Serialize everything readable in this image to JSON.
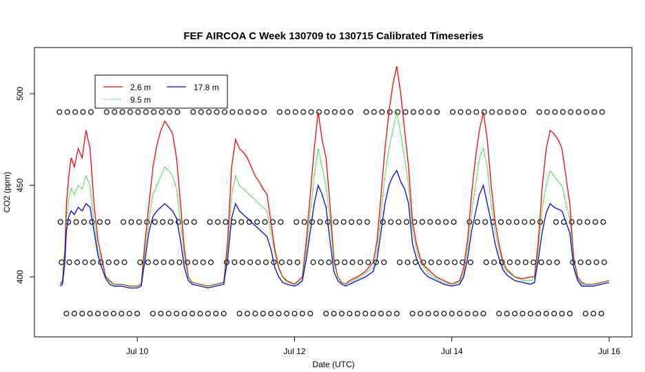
{
  "chart_data": {
    "type": "line",
    "title": "FEF AIRCOA C  Week 130709 to 130715  Calibrated Timeseries",
    "xlabel": "Date (UTC)",
    "ylabel": "CO2 (ppm)",
    "xlim": [
      9.0,
      16.0
    ],
    "ylim": [
      370,
      520
    ],
    "x_ticks": [
      {
        "value": 10,
        "label": "Jul 10"
      },
      {
        "value": 12,
        "label": "Jul 12"
      },
      {
        "value": 14,
        "label": "Jul 14"
      },
      {
        "value": 16,
        "label": "Jul 16"
      }
    ],
    "y_ticks": [
      {
        "value": 400,
        "label": "400"
      },
      {
        "value": 450,
        "label": "450"
      },
      {
        "value": 500,
        "label": "500"
      }
    ],
    "legend": {
      "placement": "top-left",
      "entries": [
        {
          "name": "2.6 m",
          "color": "#ff0000",
          "style": "solid"
        },
        {
          "name": "9.5 m",
          "color": "#00cc00",
          "style": "dotted"
        },
        {
          "name": "17.8 m",
          "color": "#0000ff",
          "style": "solid"
        }
      ]
    },
    "series": [
      {
        "name": "2.6 m",
        "color": "#ff0000",
        "x": [
          9.02,
          9.05,
          9.08,
          9.1,
          9.13,
          9.16,
          9.2,
          9.25,
          9.3,
          9.35,
          9.4,
          9.45,
          9.5,
          9.55,
          9.6,
          9.65,
          9.7,
          9.8,
          9.9,
          10.0,
          10.05,
          10.1,
          10.15,
          10.2,
          10.25,
          10.3,
          10.35,
          10.4,
          10.45,
          10.5,
          10.55,
          10.6,
          10.65,
          10.7,
          10.8,
          10.9,
          11.0,
          11.1,
          11.15,
          11.2,
          11.25,
          11.3,
          11.35,
          11.4,
          11.45,
          11.5,
          11.55,
          11.6,
          11.65,
          11.7,
          11.75,
          11.8,
          11.85,
          11.9,
          12.0,
          12.05,
          12.1,
          12.15,
          12.2,
          12.25,
          12.3,
          12.35,
          12.4,
          12.45,
          12.5,
          12.55,
          12.6,
          12.65,
          12.7,
          12.8,
          12.9,
          13.0,
          13.05,
          13.1,
          13.15,
          13.2,
          13.25,
          13.3,
          13.35,
          13.4,
          13.45,
          13.5,
          13.55,
          13.6,
          13.65,
          13.7,
          13.8,
          13.9,
          14.0,
          14.1,
          14.15,
          14.2,
          14.25,
          14.3,
          14.35,
          14.4,
          14.45,
          14.5,
          14.55,
          14.6,
          14.65,
          14.7,
          14.8,
          14.9,
          15.0,
          15.05,
          15.1,
          15.15,
          15.2,
          15.25,
          15.3,
          15.35,
          15.4,
          15.45,
          15.5,
          15.55,
          15.6,
          15.65,
          15.7,
          15.8,
          15.9,
          16.0
        ],
        "y": [
          396,
          398,
          415,
          440,
          455,
          465,
          460,
          470,
          465,
          480,
          470,
          440,
          420,
          410,
          400,
          398,
          396,
          396,
          395,
          395,
          396,
          420,
          440,
          460,
          472,
          480,
          485,
          482,
          478,
          465,
          440,
          415,
          400,
          397,
          396,
          395,
          396,
          397,
          420,
          460,
          475,
          470,
          468,
          465,
          460,
          455,
          452,
          448,
          445,
          430,
          415,
          405,
          400,
          398,
          396,
          398,
          400,
          420,
          445,
          470,
          490,
          475,
          465,
          440,
          410,
          400,
          397,
          396,
          398,
          400,
          403,
          408,
          420,
          445,
          470,
          490,
          505,
          515,
          500,
          480,
          460,
          430,
          418,
          410,
          406,
          404,
          400,
          398,
          396,
          398,
          405,
          420,
          445,
          465,
          480,
          490,
          475,
          450,
          430,
          418,
          408,
          404,
          400,
          399,
          400,
          400,
          420,
          450,
          470,
          480,
          478,
          475,
          470,
          455,
          440,
          410,
          400,
          397,
          396,
          396,
          397,
          398
        ]
      },
      {
        "name": "9.5 m",
        "color": "#00cc00",
        "x": [
          9.02,
          9.05,
          9.08,
          9.1,
          9.13,
          9.16,
          9.2,
          9.25,
          9.3,
          9.35,
          9.4,
          9.45,
          9.5,
          9.55,
          9.6,
          9.65,
          9.7,
          9.8,
          9.9,
          10.0,
          10.05,
          10.1,
          10.15,
          10.2,
          10.25,
          10.3,
          10.35,
          10.4,
          10.45,
          10.5,
          10.55,
          10.6,
          10.65,
          10.7,
          10.8,
          10.9,
          11.0,
          11.1,
          11.15,
          11.2,
          11.25,
          11.3,
          11.35,
          11.4,
          11.45,
          11.5,
          11.55,
          11.6,
          11.65,
          11.7,
          11.75,
          11.8,
          11.85,
          11.9,
          12.0,
          12.05,
          12.1,
          12.15,
          12.2,
          12.25,
          12.3,
          12.35,
          12.4,
          12.45,
          12.5,
          12.55,
          12.6,
          12.65,
          12.7,
          12.8,
          12.9,
          13.0,
          13.05,
          13.1,
          13.15,
          13.2,
          13.25,
          13.3,
          13.35,
          13.4,
          13.45,
          13.5,
          13.55,
          13.6,
          13.65,
          13.7,
          13.8,
          13.9,
          14.0,
          14.1,
          14.15,
          14.2,
          14.25,
          14.3,
          14.35,
          14.4,
          14.45,
          14.5,
          14.55,
          14.6,
          14.65,
          14.7,
          14.8,
          14.9,
          15.0,
          15.05,
          15.1,
          15.15,
          15.2,
          15.25,
          15.3,
          15.35,
          15.4,
          15.45,
          15.5,
          15.55,
          15.6,
          15.65,
          15.7,
          15.8,
          15.9,
          16.0
        ],
        "y": [
          396,
          397,
          412,
          432,
          443,
          448,
          445,
          450,
          448,
          455,
          450,
          430,
          415,
          408,
          400,
          397,
          396,
          396,
          395,
          395,
          396,
          415,
          432,
          445,
          450,
          455,
          460,
          458,
          455,
          448,
          430,
          410,
          400,
          397,
          396,
          395,
          396,
          397,
          415,
          445,
          455,
          450,
          448,
          446,
          444,
          442,
          440,
          438,
          436,
          425,
          412,
          404,
          400,
          397,
          396,
          397,
          399,
          415,
          435,
          455,
          470,
          460,
          450,
          432,
          408,
          400,
          397,
          396,
          397,
          399,
          402,
          405,
          415,
          435,
          455,
          470,
          480,
          490,
          478,
          465,
          450,
          425,
          415,
          408,
          405,
          402,
          399,
          397,
          396,
          397,
          402,
          415,
          435,
          450,
          465,
          470,
          460,
          440,
          425,
          415,
          406,
          403,
          400,
          398,
          398,
          399,
          415,
          438,
          450,
          458,
          455,
          452,
          450,
          440,
          432,
          408,
          399,
          396,
          396,
          396,
          397,
          398
        ]
      },
      {
        "name": "17.8 m",
        "color": "#0000ff",
        "x": [
          9.02,
          9.05,
          9.08,
          9.1,
          9.13,
          9.16,
          9.2,
          9.25,
          9.3,
          9.35,
          9.4,
          9.45,
          9.5,
          9.55,
          9.6,
          9.65,
          9.7,
          9.8,
          9.9,
          10.0,
          10.05,
          10.1,
          10.15,
          10.2,
          10.25,
          10.3,
          10.35,
          10.4,
          10.45,
          10.5,
          10.55,
          10.6,
          10.65,
          10.7,
          10.8,
          10.9,
          11.0,
          11.1,
          11.15,
          11.2,
          11.25,
          11.3,
          11.35,
          11.4,
          11.45,
          11.5,
          11.55,
          11.6,
          11.65,
          11.7,
          11.75,
          11.8,
          11.85,
          11.9,
          12.0,
          12.05,
          12.1,
          12.15,
          12.2,
          12.25,
          12.3,
          12.35,
          12.4,
          12.45,
          12.5,
          12.55,
          12.6,
          12.65,
          12.7,
          12.8,
          12.9,
          13.0,
          13.05,
          13.1,
          13.15,
          13.2,
          13.25,
          13.3,
          13.35,
          13.4,
          13.45,
          13.5,
          13.55,
          13.6,
          13.65,
          13.7,
          13.8,
          13.9,
          14.0,
          14.1,
          14.15,
          14.2,
          14.25,
          14.3,
          14.35,
          14.4,
          14.45,
          14.5,
          14.55,
          14.6,
          14.65,
          14.7,
          14.8,
          14.9,
          15.0,
          15.05,
          15.1,
          15.15,
          15.2,
          15.25,
          15.3,
          15.35,
          15.4,
          15.45,
          15.5,
          15.55,
          15.6,
          15.65,
          15.7,
          15.8,
          15.9,
          16.0
        ],
        "y": [
          395,
          396,
          408,
          425,
          433,
          436,
          434,
          438,
          436,
          440,
          438,
          425,
          412,
          405,
          399,
          396,
          395,
          395,
          394,
          394,
          395,
          410,
          425,
          433,
          436,
          438,
          440,
          438,
          436,
          432,
          420,
          405,
          398,
          396,
          395,
          394,
          395,
          396,
          410,
          432,
          440,
          436,
          434,
          432,
          430,
          428,
          426,
          424,
          422,
          415,
          405,
          400,
          397,
          396,
          395,
          396,
          398,
          410,
          425,
          440,
          450,
          445,
          438,
          420,
          403,
          398,
          396,
          395,
          396,
          398,
          400,
          403,
          410,
          425,
          440,
          450,
          455,
          458,
          452,
          448,
          440,
          418,
          410,
          405,
          402,
          400,
          398,
          396,
          395,
          396,
          400,
          410,
          425,
          435,
          445,
          450,
          440,
          430,
          418,
          410,
          404,
          401,
          398,
          397,
          396,
          397,
          410,
          425,
          435,
          440,
          438,
          437,
          436,
          430,
          424,
          405,
          398,
          395,
          395,
          395,
          396,
          397
        ]
      }
    ],
    "reference_markers": [
      {
        "name": "ref-level-1",
        "y": 380
      },
      {
        "name": "ref-level-2",
        "y": 408
      },
      {
        "name": "ref-level-3",
        "y": 430
      },
      {
        "name": "ref-level-4",
        "y": 490
      }
    ]
  }
}
